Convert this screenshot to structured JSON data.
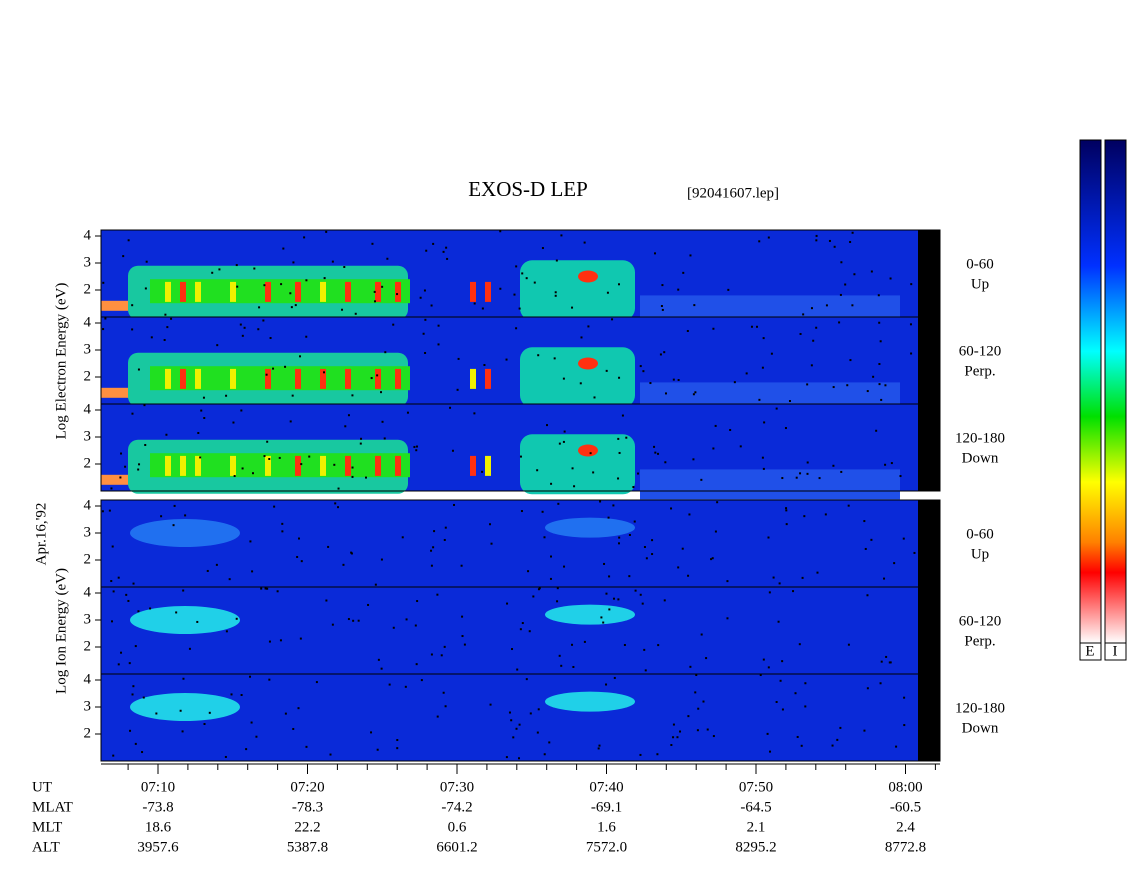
{
  "title": "EXOS-D LEP",
  "file": "[92041607.lep]",
  "date": "Apr.16,'92",
  "electron_axis_label": "Log  Electron  Energy (eV)",
  "ion_axis_label": "Log  Ion  Energy (eV)",
  "energy_ticks": [
    2,
    3,
    4
  ],
  "electron_panels": [
    {
      "angle": "0-60",
      "direction": "Up"
    },
    {
      "angle": "60-120",
      "direction": "Perp."
    },
    {
      "angle": "120-180",
      "direction": "Down"
    }
  ],
  "ion_panels": [
    {
      "angle": "0-60",
      "direction": "Up"
    },
    {
      "angle": "60-120",
      "direction": "Perp."
    },
    {
      "angle": "120-180",
      "direction": "Down"
    }
  ],
  "row_labels": [
    "UT",
    "MLAT",
    "MLT",
    "ALT"
  ],
  "columns": [
    [
      "07:10",
      "-73.8",
      "18.6",
      "3957.6"
    ],
    [
      "07:20",
      "-78.3",
      "22.2",
      "5387.8"
    ],
    [
      "07:30",
      "-74.2",
      "0.6",
      "6601.2"
    ],
    [
      "07:40",
      "-69.1",
      "1.6",
      "7572.0"
    ],
    [
      "07:50",
      "-64.5",
      "2.1",
      "8295.2"
    ],
    [
      "08:00",
      "-60.5",
      "2.4",
      "8772.8"
    ]
  ],
  "colorbar_labels": [
    "E",
    "I"
  ]
}
